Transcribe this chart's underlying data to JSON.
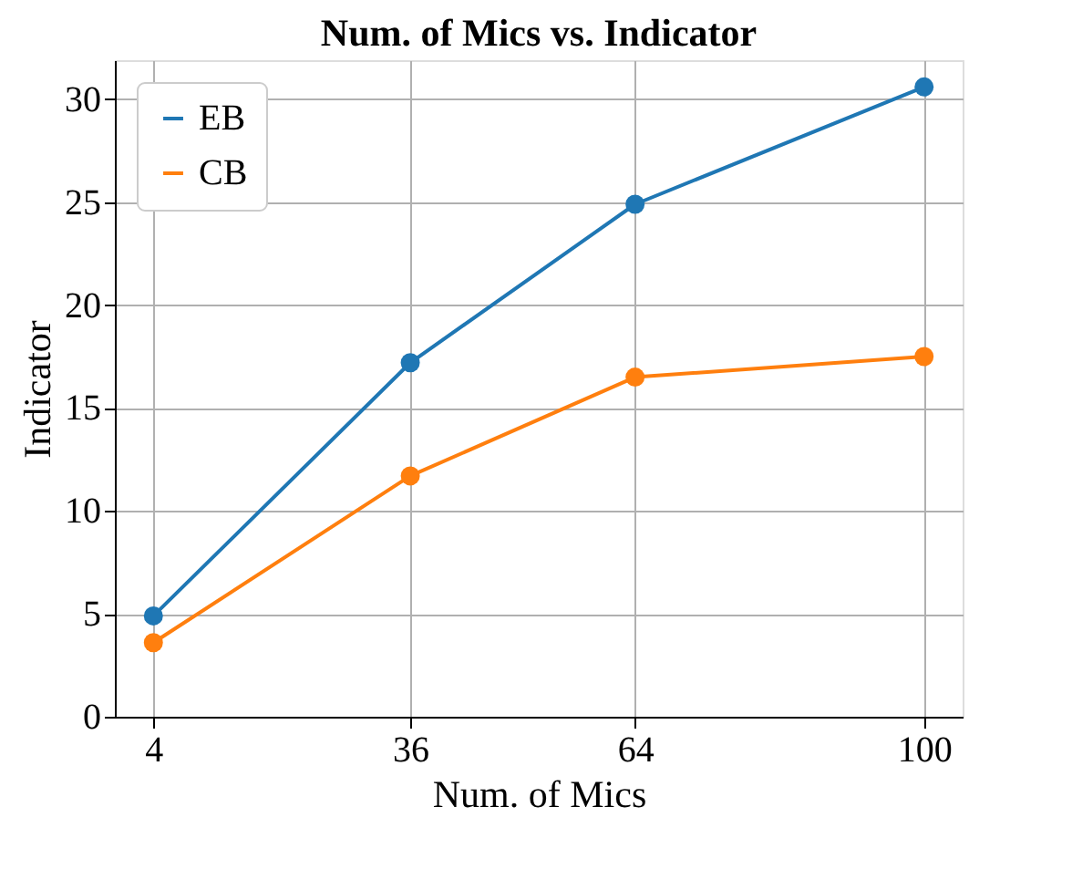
{
  "chart_data": {
    "type": "line",
    "title": "Num. of Mics vs. Indicator",
    "xlabel": "Num. of Mics",
    "ylabel": "Indicator",
    "x": [
      4,
      36,
      64,
      100
    ],
    "series": [
      {
        "name": "EB",
        "color": "#1f77b4",
        "values": [
          4.9,
          17.2,
          24.9,
          30.6
        ]
      },
      {
        "name": "CB",
        "color": "#ff7f0e",
        "values": [
          3.6,
          11.7,
          16.5,
          17.5
        ]
      }
    ],
    "xlim": [
      -0.8,
      104.8
    ],
    "xticks": [
      4,
      36,
      64,
      100
    ],
    "ylim": [
      0,
      31.9
    ],
    "yticks": [
      0,
      5,
      10,
      15,
      20,
      25,
      30
    ],
    "grid": true,
    "legend": "top left",
    "marker": "circle",
    "line_style": "solid"
  }
}
